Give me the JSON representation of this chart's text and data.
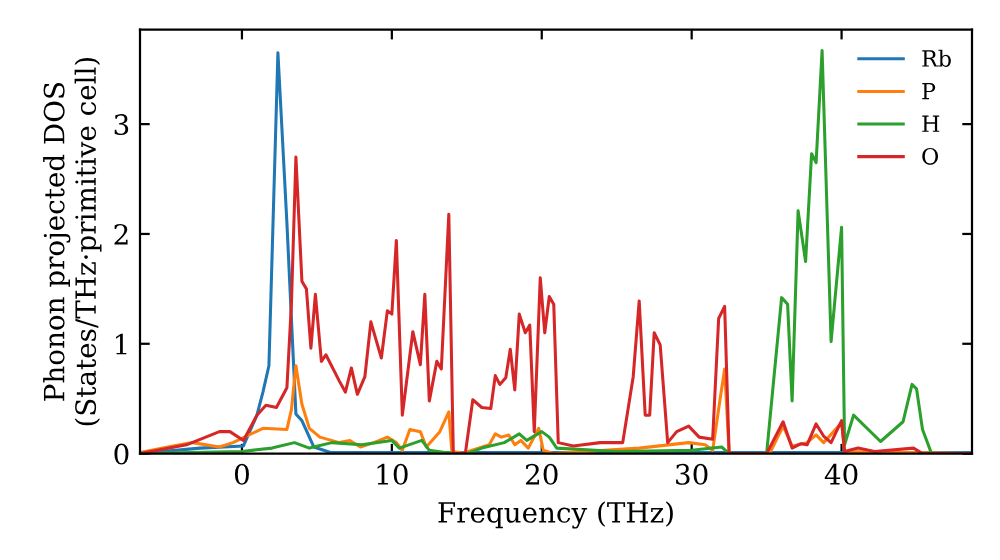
{
  "chart_data": {
    "type": "line",
    "xlabel": "Frequency (THz)",
    "ylabel": "Phonon projected DOS\n(States/THz·primitive cell)",
    "xlim": [
      -6.8,
      48.7
    ],
    "ylim": [
      0,
      3.86
    ],
    "xticks": [
      0,
      10,
      20,
      30,
      40
    ],
    "yticks": [
      0,
      1,
      2,
      3
    ],
    "grid": false,
    "legend": "top right",
    "marker": "none",
    "line_style": "solid",
    "series": [
      {
        "name": "Rb",
        "color": "#1f77b4",
        "x": [
          -6.8,
          -2.8,
          0.1,
          1.0,
          1.4,
          1.8,
          2.4,
          3.0,
          3.6,
          4.0,
          4.8,
          5.9,
          20,
          35,
          48.7
        ],
        "values": [
          0,
          0.05,
          0.07,
          0.35,
          0.56,
          0.8,
          3.65,
          2.1,
          0.36,
          0.3,
          0.06,
          0.01,
          0.01,
          0.01,
          0.01
        ]
      },
      {
        "name": "P",
        "color": "#ff7f0e",
        "x": [
          -6.8,
          -4.6,
          -3.3,
          -1.5,
          -0.6,
          1.4,
          3.0,
          3.3,
          3.6,
          4.0,
          4.5,
          5.2,
          6.5,
          7.2,
          7.9,
          8.8,
          9.7,
          10.3,
          10.7,
          11.2,
          11.9,
          12.3,
          13.2,
          13.8,
          14.0,
          14.9,
          15.1,
          16.5,
          16.9,
          17.3,
          17.8,
          18.2,
          18.6,
          19.1,
          19.8,
          20.1,
          20.8,
          26.5,
          29.8,
          30.9,
          31.4,
          31.9,
          32.2,
          32.5,
          35.2,
          36.1,
          36.7,
          37.7,
          38.3,
          38.8,
          40.0,
          40.2,
          48.7
        ],
        "values": [
          0.01,
          0.07,
          0.1,
          0.06,
          0.1,
          0.23,
          0.22,
          0.4,
          0.8,
          0.45,
          0.23,
          0.15,
          0.1,
          0.12,
          0.06,
          0.1,
          0.15,
          0.1,
          0.03,
          0.22,
          0.2,
          0.06,
          0.2,
          0.38,
          0.02,
          0,
          0.02,
          0.08,
          0.18,
          0.15,
          0.17,
          0.08,
          0.12,
          0.05,
          0.23,
          0.03,
          0,
          0.05,
          0.1,
          0.08,
          0.03,
          0.5,
          0.77,
          0,
          0,
          0.25,
          0.07,
          0.1,
          0.17,
          0.1,
          0.28,
          0.02,
          0
        ]
      },
      {
        "name": "H",
        "color": "#2ca02c",
        "x": [
          -6.8,
          0,
          2,
          3.5,
          4.5,
          6,
          8,
          10,
          10.5,
          12,
          12.5,
          14,
          15,
          16,
          17.5,
          18.5,
          19,
          20,
          20.5,
          21,
          25,
          30,
          32,
          32.5,
          35.0,
          36.0,
          36.4,
          36.7,
          37.1,
          37.6,
          38.0,
          38.3,
          38.7,
          39.3,
          40.0,
          40.2,
          40.8,
          42.6,
          44.1,
          44.7,
          45.0,
          45.4,
          46.0,
          48.7
        ],
        "values": [
          0,
          0.02,
          0.05,
          0.1,
          0.05,
          0.1,
          0.08,
          0.12,
          0.05,
          0.12,
          0.03,
          0,
          0,
          0.05,
          0.1,
          0.18,
          0.12,
          0.2,
          0.15,
          0.05,
          0.02,
          0.03,
          0.06,
          0,
          0,
          1.42,
          1.36,
          0.48,
          2.21,
          1.75,
          2.73,
          2.65,
          3.67,
          1.02,
          2.06,
          0.08,
          0.35,
          0.11,
          0.29,
          0.63,
          0.59,
          0.22,
          0,
          0
        ]
      },
      {
        "name": "O",
        "color": "#d62728",
        "x": [
          -6.8,
          -3.7,
          -1.5,
          -0.8,
          0.1,
          1.0,
          1.6,
          2.3,
          3.0,
          3.3,
          3.6,
          4.0,
          4.3,
          4.6,
          4.9,
          5.3,
          5.6,
          6.5,
          6.9,
          7.3,
          7.7,
          8.2,
          8.6,
          9.3,
          9.7,
          10.0,
          10.3,
          10.7,
          11.4,
          11.9,
          12.2,
          12.5,
          13.0,
          13.3,
          13.8,
          14.1,
          14.9,
          15.4,
          16.0,
          16.6,
          16.9,
          17.2,
          17.6,
          17.9,
          18.2,
          18.5,
          18.9,
          19.2,
          19.5,
          19.9,
          20.2,
          20.5,
          20.8,
          21.1,
          22.1,
          23.9,
          25.4,
          26.1,
          26.5,
          26.9,
          27.2,
          27.5,
          27.9,
          28.4,
          29.0,
          29.8,
          30.5,
          31.4,
          31.8,
          32.2,
          32.5,
          35.0,
          36.1,
          36.7,
          37.3,
          37.7,
          38.3,
          38.8,
          39.3,
          40.0,
          40.2,
          41.1,
          42.2,
          44.8,
          45.4,
          48.7
        ],
        "values": [
          0,
          0.08,
          0.2,
          0.2,
          0.12,
          0.35,
          0.44,
          0.42,
          0.6,
          1.36,
          2.7,
          1.57,
          1.5,
          0.96,
          1.45,
          0.84,
          0.9,
          0.66,
          0.56,
          0.78,
          0.54,
          0.7,
          1.2,
          0.87,
          1.3,
          1.27,
          1.94,
          0.35,
          1.11,
          0.81,
          1.45,
          0.48,
          0.84,
          0.77,
          2.18,
          0,
          0,
          0.49,
          0.42,
          0.41,
          0.71,
          0.63,
          0.69,
          0.95,
          0.58,
          1.27,
          1.1,
          1.17,
          0.2,
          1.6,
          1.1,
          1.43,
          1.36,
          0.1,
          0.07,
          0.1,
          0.1,
          0.7,
          1.39,
          0.35,
          0.35,
          1.1,
          0.99,
          0.1,
          0.2,
          0.25,
          0.15,
          0.13,
          1.23,
          1.34,
          0,
          0,
          0.29,
          0.05,
          0.09,
          0.08,
          0.27,
          0.16,
          0.1,
          0.3,
          0.02,
          0.05,
          0.02,
          0.05,
          0,
          0
        ]
      }
    ]
  }
}
